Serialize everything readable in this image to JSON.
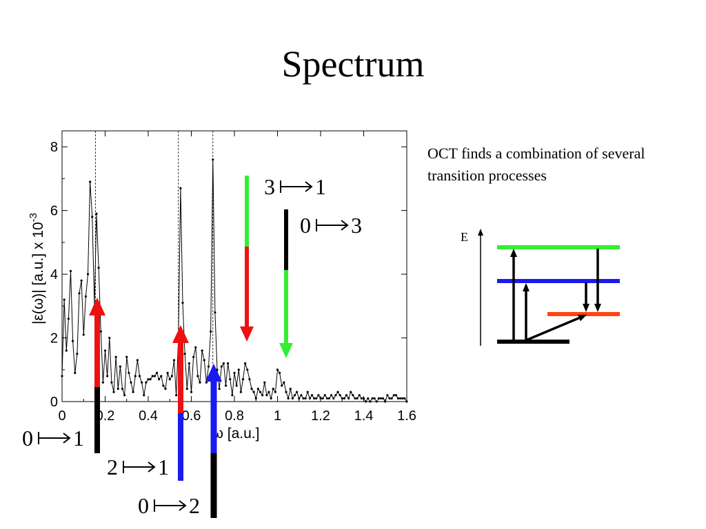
{
  "slide": {
    "title": "Spectrum",
    "note": "OCT finds a combination of several transition processes"
  },
  "chart_data": {
    "type": "line",
    "xlabel": "ω [a.u.]",
    "ylabel": "|ε(ω)| [a.u.] x 10",
    "ylabel_exponent": "-3",
    "xlim": [
      0,
      1.6
    ],
    "ylim": [
      0,
      8.5
    ],
    "xticks": [
      "0",
      "0.2",
      "0.4",
      "0.6",
      "0.8",
      "1",
      "1.2",
      "1.4",
      "1.6"
    ],
    "yticks": [
      "0",
      "2",
      "4",
      "6",
      "8"
    ],
    "xtick_values": [
      0,
      0.2,
      0.4,
      0.6,
      0.8,
      1.0,
      1.2,
      1.4,
      1.6
    ],
    "ytick_values": [
      0,
      2,
      4,
      6,
      8
    ],
    "grid": false,
    "reference_lines_x": [
      0.155,
      0.54,
      0.7
    ],
    "series": [
      {
        "x": [
          0.0,
          0.01,
          0.02,
          0.03,
          0.04,
          0.05,
          0.06,
          0.07,
          0.08,
          0.09,
          0.1,
          0.11,
          0.12,
          0.13,
          0.14,
          0.15,
          0.16,
          0.17,
          0.18,
          0.19,
          0.2,
          0.21,
          0.22,
          0.23,
          0.24,
          0.25,
          0.26,
          0.27,
          0.28,
          0.29,
          0.3,
          0.31,
          0.32,
          0.33,
          0.34,
          0.35,
          0.36,
          0.37,
          0.38,
          0.39,
          0.4,
          0.41,
          0.42,
          0.43,
          0.44,
          0.45,
          0.46,
          0.47,
          0.48,
          0.49,
          0.5,
          0.51,
          0.52,
          0.53,
          0.54,
          0.55,
          0.56,
          0.57,
          0.58,
          0.59,
          0.6,
          0.61,
          0.62,
          0.63,
          0.64,
          0.65,
          0.66,
          0.67,
          0.68,
          0.69,
          0.7,
          0.71,
          0.72,
          0.73,
          0.74,
          0.75,
          0.76,
          0.77,
          0.78,
          0.79,
          0.8,
          0.81,
          0.82,
          0.83,
          0.84,
          0.85,
          0.86,
          0.87,
          0.88,
          0.89,
          0.9,
          0.91,
          0.92,
          0.93,
          0.94,
          0.95,
          0.96,
          0.97,
          0.98,
          0.99,
          1.0,
          1.01,
          1.02,
          1.03,
          1.04,
          1.05,
          1.06,
          1.07,
          1.08,
          1.09,
          1.1,
          1.11,
          1.12,
          1.13,
          1.14,
          1.15,
          1.16,
          1.17,
          1.18,
          1.19,
          1.2,
          1.21,
          1.22,
          1.23,
          1.24,
          1.25,
          1.26,
          1.27,
          1.28,
          1.29,
          1.3,
          1.31,
          1.32,
          1.33,
          1.34,
          1.35,
          1.36,
          1.37,
          1.38,
          1.39,
          1.4,
          1.41,
          1.42,
          1.43,
          1.44,
          1.45,
          1.46,
          1.47,
          1.48,
          1.49,
          1.5,
          1.51,
          1.52,
          1.53,
          1.54,
          1.55,
          1.56,
          1.57,
          1.58,
          1.59,
          1.6
        ],
        "y": [
          0.8,
          3.2,
          1.6,
          2.6,
          4.1,
          1.9,
          0.9,
          1.5,
          3.4,
          3.8,
          2.1,
          3.3,
          4.0,
          6.9,
          5.8,
          3.0,
          5.9,
          4.2,
          2.2,
          0.6,
          1.6,
          0.8,
          2.0,
          0.6,
          0.3,
          1.4,
          0.4,
          1.1,
          0.4,
          0.2,
          1.4,
          0.9,
          0.6,
          0.3,
          0.8,
          1.3,
          0.8,
          0.6,
          0.2,
          0.6,
          0.7,
          0.7,
          0.8,
          0.8,
          0.9,
          0.7,
          0.8,
          0.5,
          0.4,
          0.9,
          0.7,
          0.8,
          1.3,
          0.2,
          2.0,
          6.7,
          3.1,
          1.5,
          0.4,
          1.2,
          0.3,
          1.4,
          1.7,
          0.8,
          0.6,
          1.6,
          1.3,
          0.6,
          1.1,
          2.2,
          7.6,
          2.8,
          1.0,
          0.4,
          1.1,
          1.2,
          0.5,
          1.2,
          0.7,
          0.2,
          0.9,
          0.5,
          1.0,
          0.3,
          0.7,
          1.2,
          1.0,
          0.7,
          0.4,
          0.3,
          0.1,
          0.4,
          0.3,
          0.2,
          0.6,
          0.2,
          0.3,
          0.1,
          0.4,
          0.3,
          1.0,
          0.9,
          0.5,
          0.6,
          0.3,
          0.1,
          0.4,
          0.1,
          0.2,
          0.3,
          0.1,
          0.2,
          0.1,
          0.1,
          0.3,
          0.1,
          0.2,
          0.1,
          0.1,
          0.2,
          0.1,
          0.1,
          0.2,
          0.1,
          0.1,
          0.2,
          0.1,
          0.2,
          0.3,
          0.2,
          0.1,
          0.1,
          0.2,
          0.1,
          0.3,
          0.2,
          0.1,
          0.1,
          0.2,
          0.1,
          0.1,
          0.0,
          0.1,
          0.0,
          0.1,
          0.1,
          0.0,
          0.1,
          0.1,
          0.1,
          0.0,
          0.2,
          0.1,
          0.1,
          0.2,
          0.2,
          0.1,
          0.1,
          0.1,
          0.1,
          0.0
        ]
      }
    ]
  },
  "transitions": [
    {
      "label_from": "0",
      "label_to": "1"
    },
    {
      "label_from": "2",
      "label_to": "1"
    },
    {
      "label_from": "0",
      "label_to": "2"
    },
    {
      "label_from": "3",
      "label_to": "1"
    },
    {
      "label_from": "0",
      "label_to": "3"
    }
  ],
  "level_diagram": {
    "axis_label": "E",
    "level_colors": [
      "#33ee33",
      "#1a1aee",
      "#ff4411",
      "#000000"
    ]
  },
  "colors": {
    "red": "#ee1111",
    "green": "#33ee33",
    "blue": "#1a1aee",
    "black": "#000000"
  }
}
